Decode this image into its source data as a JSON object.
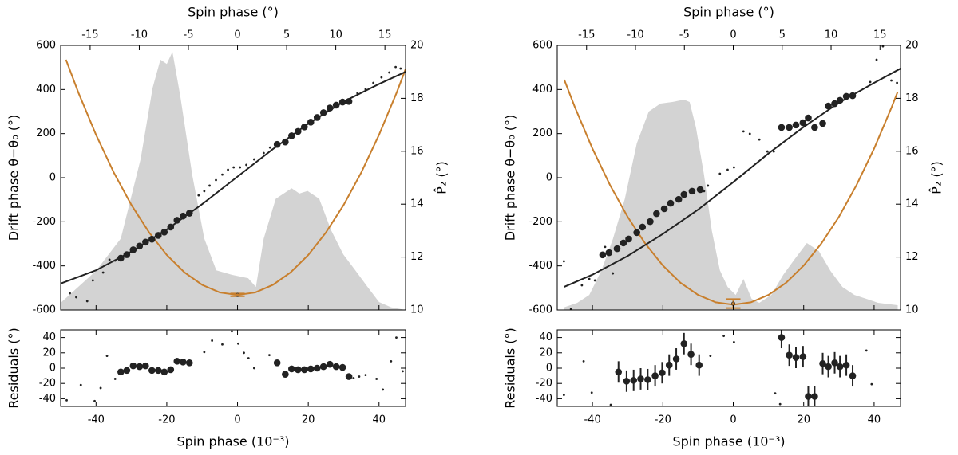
{
  "chart_data": [
    {
      "type": "combo",
      "x2label": "Spin phase (°)",
      "ylabel": "Drift phase θ−θ₀ (°)",
      "y2label": "P̂₂ (°)",
      "xlim": [
        -50,
        47.5
      ],
      "xticks": [
        -40,
        -20,
        0,
        20,
        40
      ],
      "xticklabels": false,
      "x2lim": [
        -18,
        17.1
      ],
      "x2ticks": [
        -15,
        -10,
        -5,
        0,
        5,
        10,
        15
      ],
      "ylim": [
        -600,
        600
      ],
      "yticks": [
        -600,
        -400,
        -200,
        0,
        200,
        400,
        600
      ],
      "y2lim": [
        10,
        20
      ],
      "y2ticks": [
        10,
        12,
        14,
        16,
        18,
        20
      ],
      "series": [
        {
          "type": "area",
          "axis": "y2",
          "color": "#d3d3d3",
          "x": [
            -50,
            -40,
            -33,
            -27.4,
            -24,
            -21.8,
            -20,
            -18.4,
            -16.2,
            -12.8,
            -9.4,
            -6,
            -1.6,
            3,
            5.2,
            7.4,
            10.8,
            15.3,
            17.5,
            19.8,
            23.1,
            26.5,
            29.9,
            33.3,
            36.6,
            40,
            43.4,
            47.5
          ],
          "values": [
            10.27,
            11.48,
            12.7,
            15.7,
            18.4,
            19.46,
            19.3,
            19.76,
            18.1,
            15.1,
            12.7,
            11.5,
            11.33,
            11.2,
            10.87,
            12.7,
            14.2,
            14.6,
            14.4,
            14.5,
            14.2,
            13.0,
            12.1,
            11.5,
            10.9,
            10.3,
            10.1,
            10.0
          ]
        },
        {
          "type": "line",
          "axis": "y2",
          "color": "#c87f2d",
          "x": [
            -48.5,
            -45,
            -40,
            -35,
            -30,
            -25,
            -20,
            -15,
            -10,
            -5,
            0,
            5,
            10,
            15,
            20,
            25,
            30,
            35,
            40,
            45,
            47.5
          ],
          "values": [
            19.46,
            18.22,
            16.62,
            15.2,
            13.97,
            12.93,
            12.08,
            11.42,
            10.95,
            10.66,
            10.57,
            10.66,
            10.95,
            11.42,
            12.08,
            12.93,
            13.97,
            15.2,
            16.62,
            18.22,
            19.1
          ]
        },
        {
          "type": "line",
          "color": "#222222",
          "x": [
            -50,
            -40,
            -30,
            -20,
            -10,
            0,
            10,
            20,
            30,
            40,
            47.5
          ],
          "values": [
            -480,
            -420,
            -335,
            -235,
            -120,
            5,
            130,
            245,
            345,
            425,
            480
          ]
        },
        {
          "type": "scatter",
          "color": "#222222",
          "marker": "small",
          "x": [
            -47.4,
            -45.6,
            -42.5,
            -40.9,
            -38.0,
            -36.2,
            -34.6,
            -11.0,
            -9.4,
            -7.9,
            -6.1,
            -4.3,
            -2.7,
            -1.1,
            0.7,
            2.5,
            4.7,
            7.4,
            9.2,
            33.9,
            36.2,
            38.4,
            40.7,
            42.9,
            44.7,
            46.1
          ],
          "values": [
            -524,
            -542,
            -560,
            -466,
            -430,
            -372,
            -376,
            -80,
            -61,
            -36,
            -11,
            14,
            36,
            47,
            47,
            58,
            83,
            112,
            137,
            383,
            401,
            430,
            455,
            477,
            502,
            495
          ]
        },
        {
          "type": "scatter",
          "color": "#222222",
          "marker": "large",
          "x": [
            -33,
            -31.3,
            -29.5,
            -27.7,
            -26,
            -24.2,
            -22.4,
            -20.7,
            -18.9,
            -17.1,
            -15.4,
            -13.6,
            11.2,
            13.5,
            15.3,
            17.1,
            18.9,
            20.7,
            22.5,
            24.3,
            26.1,
            27.9,
            29.7,
            31.5
          ],
          "values": [
            -365,
            -349,
            -327,
            -310,
            -292,
            -279,
            -262,
            -247,
            -224,
            -193,
            -174,
            -161,
            151,
            162,
            190,
            210,
            230,
            252,
            273,
            295,
            316,
            329,
            343,
            346
          ]
        },
        {
          "type": "errorbar",
          "axis": "y2",
          "color": "#c87f2d",
          "marker": "open",
          "caps": true,
          "x": [
            0
          ],
          "values": [
            10.57
          ],
          "errors": [
            0.05
          ]
        }
      ]
    },
    {
      "type": "combo",
      "xlabel": "Spin phase (10⁻³)",
      "ylabel": "Residuals (°)",
      "xlim": [
        -50,
        47.5
      ],
      "xticks": [
        -40,
        -20,
        0,
        20,
        40
      ],
      "ylim": [
        -50,
        50
      ],
      "yticks": [
        -40,
        -20,
        0,
        20,
        40
      ],
      "series": [
        {
          "type": "scatter",
          "color": "#222222",
          "marker": "small",
          "x": [
            -48.3,
            -44.3,
            -40.4,
            -38.7,
            -36.9,
            -34.6,
            -9.4,
            -7.2,
            -4.3,
            -1.6,
            0.2,
            1.8,
            3.1,
            4.7,
            9,
            32.8,
            34.4,
            36.2,
            39.3,
            41.1,
            43.4,
            44.9,
            46.7
          ],
          "values": [
            -42,
            -22,
            -43,
            -26,
            16,
            -14,
            21,
            36,
            31,
            48,
            32,
            20,
            13,
            0,
            17,
            -13,
            -11,
            -9,
            -14,
            -28,
            9,
            40,
            -4
          ]
        },
        {
          "type": "errorbar",
          "color": "#222222",
          "marker": "large",
          "caps": false,
          "x": [
            -33,
            -31.3,
            -29.5,
            -27.7,
            -26,
            -24.2,
            -22.4,
            -20.7,
            -18.9,
            -17.1,
            -15.4,
            -13.6,
            11.2,
            13.5,
            15.3,
            17.1,
            18.9,
            20.7,
            22.5,
            24.3,
            26.1,
            27.9,
            29.7,
            31.5
          ],
          "values": [
            -5,
            -3,
            3,
            2,
            3,
            -3,
            -3,
            -5,
            -2,
            9,
            8,
            7,
            7,
            -8,
            -1,
            -2,
            -2,
            -1,
            0,
            2,
            5,
            2,
            1,
            -11
          ],
          "errors": [
            4,
            4,
            4,
            4,
            4,
            4,
            4,
            4,
            4,
            4,
            4,
            4,
            4,
            4,
            4,
            4,
            4,
            4,
            4,
            4,
            4,
            4,
            4,
            4
          ]
        }
      ]
    },
    {
      "type": "combo",
      "x2label": "Spin phase (°)",
      "ylabel": "Drift phase θ−θ₀ (°)",
      "y2label": "P̂₂ (°)",
      "xlim": [
        -50,
        47.5
      ],
      "xticks": [
        -40,
        -20,
        0,
        20,
        40
      ],
      "xticklabels": false,
      "x2lim": [
        -18,
        17.1
      ],
      "x2ticks": [
        -15,
        -10,
        -5,
        0,
        5,
        10,
        15
      ],
      "ylim": [
        -600,
        600
      ],
      "yticks": [
        -600,
        -400,
        -200,
        0,
        200,
        400,
        600
      ],
      "y2lim": [
        10,
        20
      ],
      "y2ticks": [
        10,
        12,
        14,
        16,
        18,
        20
      ],
      "series": [
        {
          "type": "area",
          "axis": "y2",
          "color": "#d3d3d3",
          "x": [
            -48,
            -44.3,
            -40.9,
            -37.5,
            -34.2,
            -30.8,
            -27.4,
            -24,
            -20.7,
            -17.3,
            -14,
            -12.4,
            -10.6,
            -8.3,
            -6.1,
            -3.8,
            -1.6,
            0.7,
            2.9,
            5.2,
            7.4,
            10.8,
            14.2,
            17.5,
            20.9,
            24.3,
            27.6,
            31,
            34.4,
            37.8,
            41.1,
            46.7
          ],
          "values": [
            10.1,
            10.27,
            10.57,
            11.48,
            12.68,
            14.2,
            16.3,
            17.5,
            17.8,
            17.86,
            17.95,
            17.86,
            16.9,
            15.1,
            13,
            11.5,
            10.87,
            10.57,
            11.17,
            10.42,
            10.27,
            10.57,
            11.33,
            11.93,
            12.53,
            12.23,
            11.48,
            10.87,
            10.57,
            10.42,
            10.27,
            10.18
          ]
        },
        {
          "type": "line",
          "axis": "y2",
          "color": "#c87f2d",
          "x": [
            -48,
            -45,
            -40,
            -35,
            -30,
            -25,
            -20,
            -15,
            -10,
            -5,
            0,
            5,
            10,
            15,
            20,
            25,
            30,
            35,
            40,
            45,
            46.7
          ],
          "values": [
            18.7,
            17.67,
            16.1,
            14.72,
            13.52,
            12.51,
            11.68,
            11.03,
            10.57,
            10.29,
            10.2,
            10.29,
            10.57,
            11.03,
            11.68,
            12.51,
            13.52,
            14.72,
            16.1,
            17.67,
            18.25
          ]
        },
        {
          "type": "line",
          "color": "#222222",
          "x": [
            -48,
            -40,
            -30,
            -20,
            -10,
            0,
            10,
            20,
            30,
            40,
            47.5
          ],
          "values": [
            -495,
            -440,
            -355,
            -255,
            -145,
            -20,
            110,
            230,
            340,
            430,
            495
          ]
        },
        {
          "type": "scatter",
          "color": "#222222",
          "marker": "small",
          "x": [
            -48.1,
            -46.1,
            -43,
            -40.9,
            -39.3,
            -36.4,
            -34.2,
            -8.3,
            -7.2,
            -3.8,
            -1.6,
            0.2,
            2.9,
            4.7,
            7.4,
            9.7,
            11.5,
            38.9,
            40.7,
            42.5,
            44.9,
            46.5
          ],
          "values": [
            -379,
            -596,
            -488,
            -459,
            -466,
            -314,
            -434,
            -61,
            -36,
            18,
            36,
            47,
            210,
            199,
            173,
            119,
            119,
            434,
            535,
            596,
            441,
            430
          ]
        },
        {
          "type": "scatter",
          "color": "#222222",
          "marker": "large",
          "x": [
            -37.1,
            -35.3,
            -33,
            -31.2,
            -29.7,
            -27.4,
            -25.8,
            -23.6,
            -21.8,
            -19.6,
            -17.8,
            -15.5,
            -14,
            -11.7,
            -9.4,
            13.7,
            15.9,
            17.8,
            19.8,
            21.3,
            23.1,
            25.4,
            27,
            28.8,
            30.3,
            32.1,
            33.9
          ],
          "values": [
            -350,
            -340,
            -322,
            -296,
            -278,
            -249,
            -224,
            -199,
            -163,
            -141,
            -116,
            -98,
            -76,
            -61,
            -54,
            228,
            228,
            239,
            249,
            271,
            228,
            246,
            325,
            336,
            351,
            369,
            372
          ]
        },
        {
          "type": "errorbar",
          "axis": "y2",
          "color": "#c87f2d",
          "marker": "open",
          "caps": true,
          "x": [
            0
          ],
          "values": [
            10.24
          ],
          "errors": [
            0.17
          ]
        }
      ]
    },
    {
      "type": "combo",
      "xlabel": "Spin phase (10⁻³)",
      "ylabel": "Residuals (°)",
      "xlim": [
        -50,
        47.5
      ],
      "xticks": [
        -40,
        -20,
        0,
        20,
        40
      ],
      "ylim": [
        -50,
        50
      ],
      "yticks": [
        -40,
        -20,
        0,
        20,
        40
      ],
      "series": [
        {
          "type": "scatter",
          "color": "#222222",
          "marker": "small",
          "x": [
            -48.1,
            -42.5,
            -40.2,
            -34.8,
            -33,
            -6.5,
            -2.7,
            0.2,
            11.9,
            13.3,
            37.8,
            39.3
          ],
          "values": [
            -35,
            9,
            -32,
            -48,
            -4,
            16,
            42,
            34,
            -33,
            -47,
            23,
            -21
          ]
        },
        {
          "type": "errorbar",
          "color": "#222222",
          "marker": "large",
          "caps": false,
          "x": [
            -32.6,
            -30.3,
            -28.3,
            -26.3,
            -24.3,
            -22.2,
            -20.2,
            -18.2,
            -16.2,
            -14,
            -12,
            -9.7,
            13.7,
            15.9,
            17.8,
            19.8,
            21.3,
            23.1,
            25.4,
            27,
            28.8,
            30.3,
            32.1,
            33.9
          ],
          "values": [
            -5,
            -17,
            -16,
            -14,
            -15,
            -10,
            -6,
            4,
            12,
            32,
            18,
            4,
            40,
            17,
            14,
            15,
            -37,
            -37,
            6,
            2,
            7,
            2,
            4,
            -10
          ],
          "errors": [
            14,
            14,
            14,
            14,
            14,
            14,
            14,
            14,
            14,
            14,
            14,
            14,
            14,
            14,
            14,
            14,
            14,
            14,
            14,
            14,
            14,
            14,
            14,
            14
          ]
        }
      ]
    }
  ]
}
